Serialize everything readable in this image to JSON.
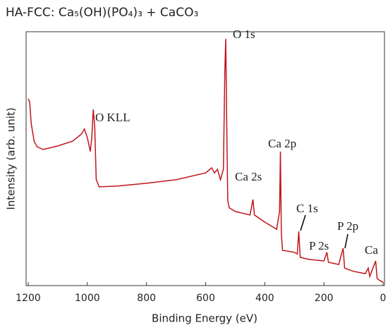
{
  "chart_data": {
    "type": "line",
    "title": "HA-FCC: Ca₅(OH)(PO₄)₃ + CaCO₃",
    "xlabel": "Binding Energy (eV)",
    "ylabel": "Intensity (arb. unit)",
    "annotations": [
      "O KLL",
      "O 1s",
      "Ca 2p",
      "Ca 2s",
      "C 1s",
      "P 2s",
      "P 2p",
      "Ca"
    ],
    "xlim": [
      1200,
      0
    ],
    "xticks": [
      1200,
      1000,
      800,
      600,
      400,
      200,
      0
    ],
    "ylim": [
      0,
      100
    ],
    "series": [
      {
        "color": "#c0141c",
        "x": [
          1200,
          1195,
          1190,
          1180,
          1170,
          1150,
          1100,
          1050,
          1020,
          1010,
          1000,
          990,
          985,
          980,
          975,
          970,
          960,
          900,
          800,
          700,
          600,
          580,
          570,
          560,
          550,
          540,
          535,
          532,
          528,
          525,
          520,
          500,
          450,
          440,
          435,
          400,
          380,
          360,
          350,
          347,
          344,
          340,
          300,
          290,
          285,
          280,
          250,
          200,
          190,
          185,
          150,
          135,
          130,
          100,
          60,
          50,
          45,
          25,
          20,
          10,
          0
        ],
        "values": [
          73.6,
          72.2,
          63.9,
          56.9,
          54.7,
          53.6,
          55.0,
          56.9,
          59.7,
          61.7,
          58.3,
          52.8,
          58.3,
          69.4,
          62.5,
          41.7,
          38.9,
          39.2,
          40.3,
          41.7,
          44.4,
          46.4,
          44.4,
          45.8,
          41.7,
          45.8,
          84.7,
          97.2,
          56.9,
          33.3,
          30.6,
          29.2,
          27.8,
          33.9,
          27.8,
          25.0,
          23.6,
          22.2,
          29.2,
          52.8,
          20.8,
          13.9,
          13.1,
          12.5,
          21.4,
          11.1,
          10.3,
          9.7,
          13.1,
          9.2,
          8.3,
          14.7,
          6.9,
          5.6,
          4.7,
          6.9,
          3.6,
          9.7,
          2.8,
          1.9,
          1.4
        ]
      }
    ]
  }
}
